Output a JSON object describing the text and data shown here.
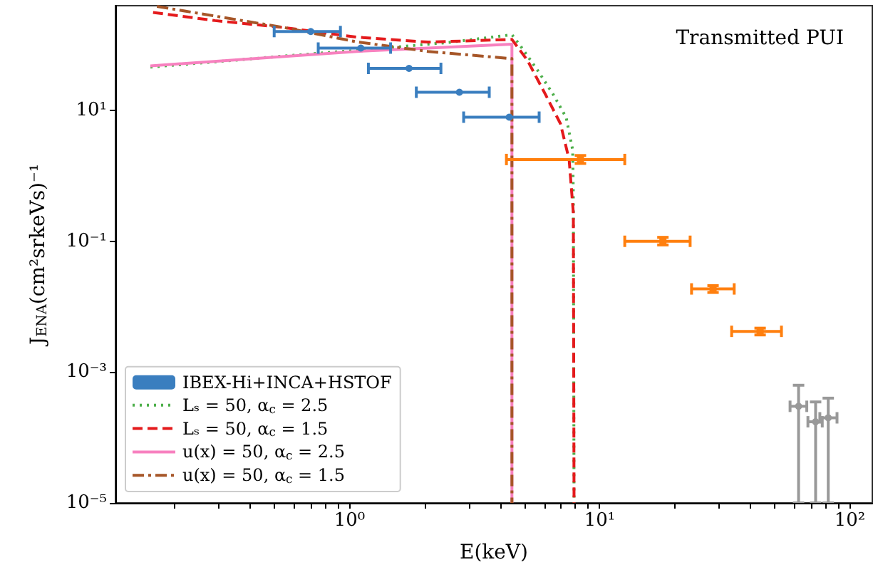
{
  "chart_data": {
    "type": "line",
    "xlabel": "E(keV)",
    "ylabel": "J$_{ENA}$(cm²srkeVs)⁻¹",
    "annotations": [
      "Transmitted PUI"
    ],
    "log": "xy",
    "grid": false,
    "legend": "bottom left",
    "xlim": [
      0.116,
      123
    ],
    "ylim": [
      1e-05,
      400
    ],
    "xticks": [
      {
        "value": 0.2,
        "label": null
      },
      {
        "value": 0.3,
        "label": null
      },
      {
        "value": 0.4,
        "label": null
      },
      {
        "value": 0.5,
        "label": null
      },
      {
        "value": 0.6,
        "label": null
      },
      {
        "value": 0.7,
        "label": null
      },
      {
        "value": 0.8,
        "label": null
      },
      {
        "value": 0.9,
        "label": null
      },
      {
        "value": 1,
        "label": "10⁰"
      },
      {
        "value": 2,
        "label": null
      },
      {
        "value": 3,
        "label": null
      },
      {
        "value": 4,
        "label": null
      },
      {
        "value": 5,
        "label": null
      },
      {
        "value": 6,
        "label": null
      },
      {
        "value": 7,
        "label": null
      },
      {
        "value": 8,
        "label": null
      },
      {
        "value": 9,
        "label": null
      },
      {
        "value": 10,
        "label": "10¹"
      },
      {
        "value": 20,
        "label": null
      },
      {
        "value": 30,
        "label": null
      },
      {
        "value": 40,
        "label": null
      },
      {
        "value": 50,
        "label": null
      },
      {
        "value": 60,
        "label": null
      },
      {
        "value": 70,
        "label": null
      },
      {
        "value": 80,
        "label": null
      },
      {
        "value": 90,
        "label": null
      },
      {
        "value": 100,
        "label": "10²"
      }
    ],
    "yticks": [
      {
        "value": 1e-05,
        "label": "10⁻⁵"
      },
      {
        "value": 0.001,
        "label": "10⁻³"
      },
      {
        "value": 0.1,
        "label": "10⁻¹"
      },
      {
        "value": 10,
        "label": "10¹"
      }
    ],
    "series": [
      {
        "name": "IBEX-Hi+INCA+HSTOF",
        "type": "scatter",
        "marker": "circle",
        "color": "#3a7ebf",
        "x": [
          0.7,
          1.11,
          1.73,
          2.75,
          4.35
        ],
        "values": [
          161,
          90,
          44,
          19,
          7.9
        ],
        "xerrors": [
          [
            0.5,
            0.92
          ],
          [
            0.75,
            1.46
          ],
          [
            1.19,
            2.32
          ],
          [
            1.85,
            3.62
          ],
          [
            2.86,
            5.73
          ]
        ],
        "errors": [
          null,
          null,
          null,
          null,
          null
        ]
      },
      {
        "type": "scatter",
        "marker": "square",
        "color": "#ff7f0e",
        "x": [
          8.38,
          17.9,
          28.4,
          43.8
        ],
        "values": [
          1.78,
          0.1,
          0.0187,
          0.0042
        ],
        "xerrors": [
          [
            4.24,
            12.6
          ],
          [
            12.6,
            23.0
          ],
          [
            23.3,
            34.5
          ],
          [
            33.7,
            53.3
          ]
        ],
        "errors": [
          [
            1.55,
            2.05
          ],
          [
            0.088,
            0.115
          ],
          [
            0.0165,
            0.021
          ],
          [
            0.0037,
            0.0047
          ]
        ]
      },
      {
        "type": "scatter",
        "marker": "circle",
        "color": "#999999",
        "x": [
          62.4,
          73,
          82
        ],
        "values": [
          0.0003,
          0.000174,
          0.0002
        ],
        "xerrors": [
          [
            57.7,
            67.3
          ],
          [
            68.0,
            77.6
          ],
          [
            75.9,
            88.9
          ]
        ],
        "errors": [
          [
            1e-05,
            0.00063
          ],
          [
            1e-05,
            0.00035
          ],
          [
            1e-05,
            0.0004
          ]
        ]
      },
      {
        "name": "Lₛ = 50, α$_{c}$ = 2.5",
        "color": "#4daf4a",
        "line_style": "dotted",
        "x": [
          0.16,
          0.3,
          0.6,
          1.2,
          2.5,
          4.46,
          4.8,
          5.65,
          6.5,
          7.35,
          7.8,
          7.85,
          7.9
        ],
        "values": [
          46,
          56,
          70,
          86,
          110,
          144,
          100,
          41,
          18,
          7.8,
          2.5,
          0.5,
          1e-05
        ]
      },
      {
        "name": "Lₛ = 50, α$_{c}$ = 1.5",
        "color": "#e41a1c",
        "line_style": "dashed",
        "x": [
          0.164,
          0.29,
          0.55,
          1.07,
          2.06,
          4.46,
          5.15,
          6.1,
          6.97,
          7.55,
          7.85,
          7.9
        ],
        "values": [
          316,
          237,
          185,
          132,
          111,
          122,
          58,
          17,
          6.3,
          1.78,
          0.27,
          1e-05
        ]
      },
      {
        "name": "u(x) = 50, α$_{c}$ = 2.5",
        "color": "#f781bf",
        "line_style": "solid",
        "x": [
          0.16,
          0.55,
          1.07,
          2.06,
          4.46,
          4.46
        ],
        "values": [
          48,
          67,
          80,
          90,
          103,
          1e-05
        ]
      },
      {
        "name": "u(x) = 50, α$_{c}$ = 1.5",
        "color": "#a65628",
        "line_style": "dashdot",
        "x": [
          0.17,
          0.55,
          1.07,
          2.06,
          4.46,
          4.46
        ],
        "values": [
          390,
          185,
          112,
          80,
          62,
          1e-05
        ]
      }
    ]
  }
}
